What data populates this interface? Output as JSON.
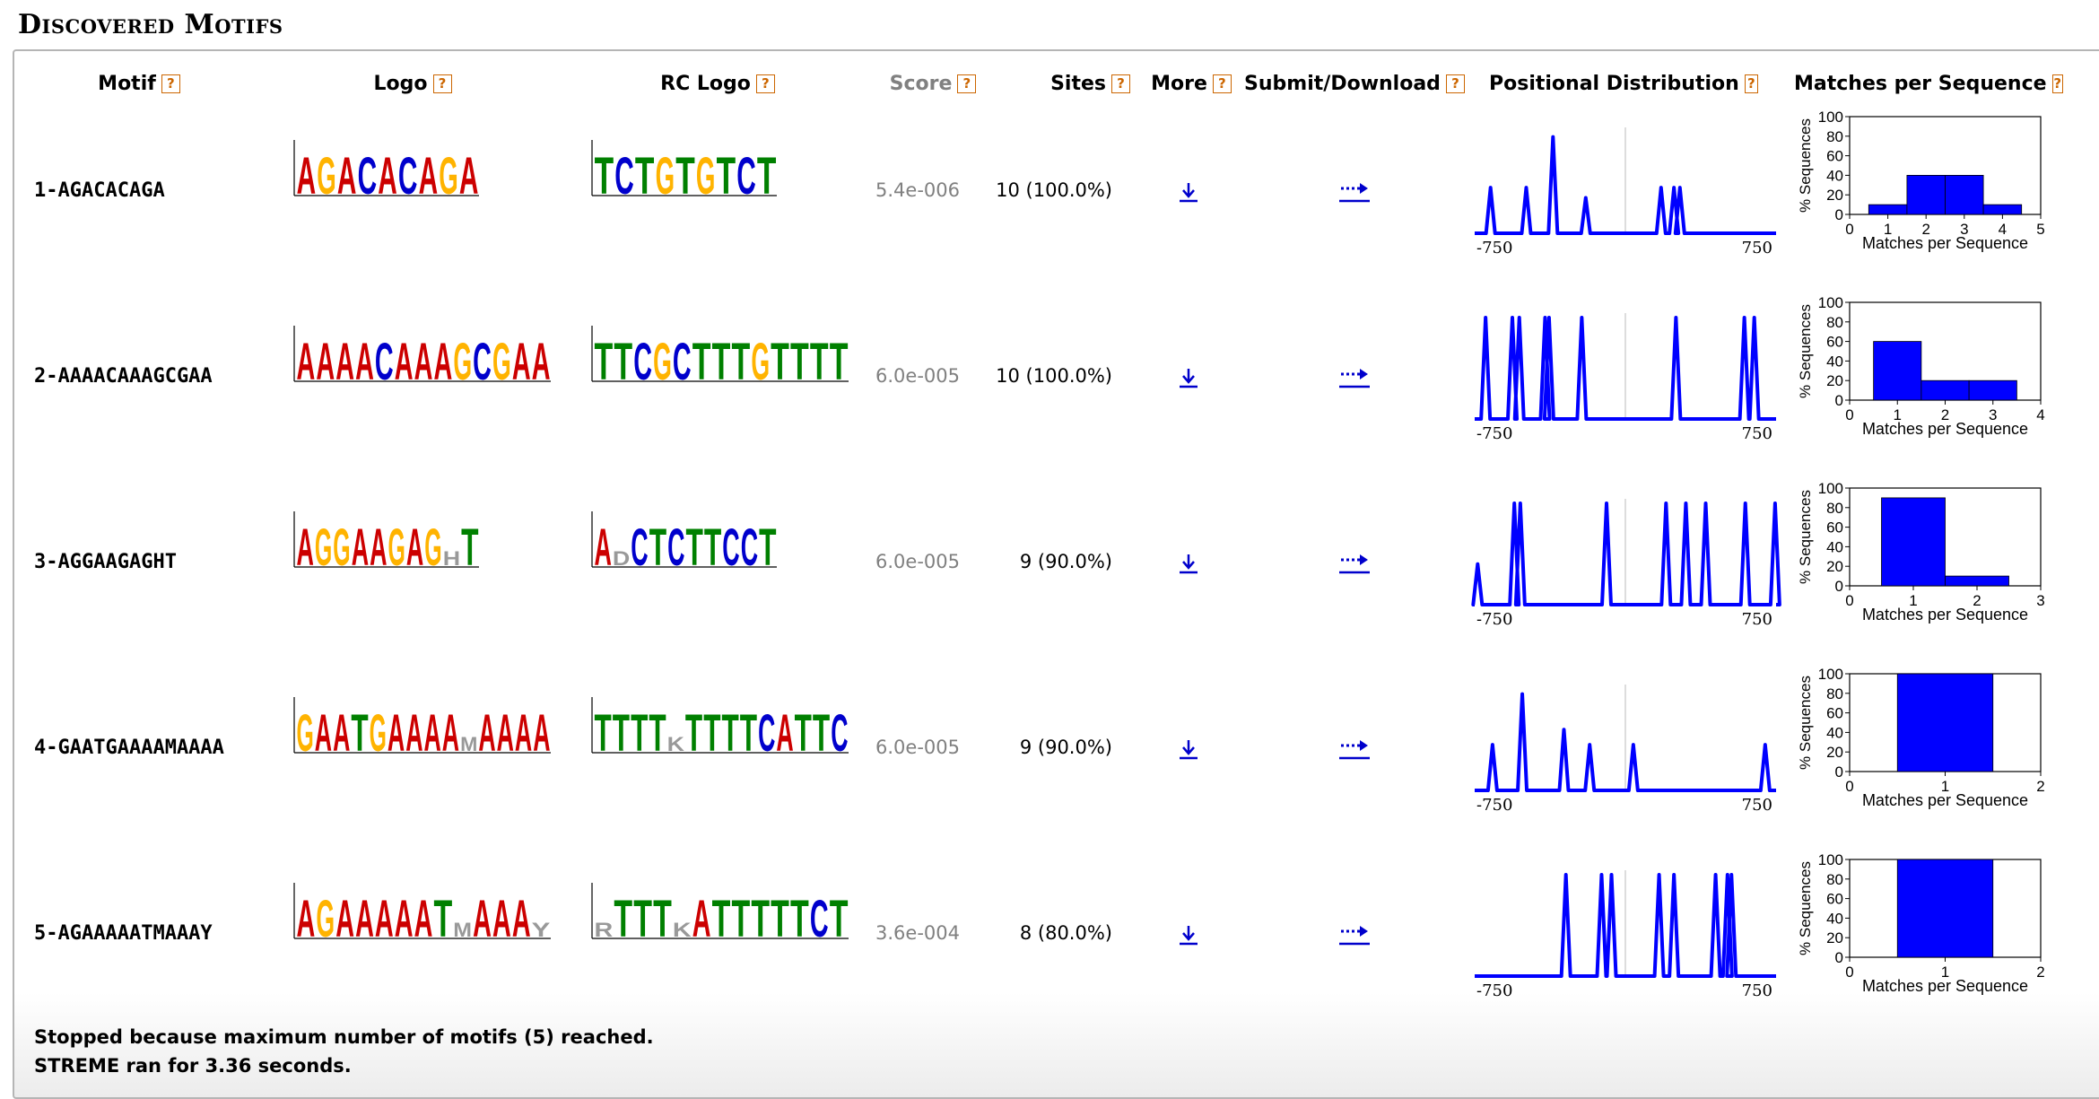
{
  "section_title": "Discovered Motifs",
  "headers": {
    "motif": "Motif",
    "logo": "Logo",
    "rc_logo": "RC Logo",
    "score": "Score",
    "sites": "Sites",
    "more": "More",
    "submit_download": "Submit/Download",
    "positional_distribution": "Positional Distribution",
    "matches_per_sequence": "Matches per Sequence"
  },
  "help_glyph": "?",
  "pd_axis": {
    "min": "-750",
    "max": "750"
  },
  "mps_axis": {
    "y_label": "% Sequences",
    "x_label": "Matches per Sequence",
    "y_ticks": [
      "0",
      "20",
      "40",
      "60",
      "80",
      "100"
    ]
  },
  "colors": {
    "A": "#cc0000",
    "C": "#0000cc",
    "G": "#ffb300",
    "T": "#008000",
    "plot_blue": "#0000ff",
    "link_blue": "#0000cc",
    "help_orange": "#cc6600",
    "score_grey": "#808080"
  },
  "icons": {
    "more": "download-arrow-icon",
    "submit": "dotted-arrow-right-icon",
    "help": "help-question-icon"
  },
  "motifs": [
    {
      "id": "1-AGACACAGA",
      "score": "5.4e-006",
      "sites": "10 (100.0%)",
      "logo": "AGACACAGA",
      "rc_logo": "TCTGTGTCT",
      "peaks": [
        -680,
        -500,
        -365,
        -200,
        180,
        245,
        275
      ],
      "peak_heights": [
        0.45,
        0.45,
        0.95,
        0.35,
        0.45,
        0.45,
        0.45
      ],
      "mps_xmax": 5,
      "mps_bars": [
        {
          "x": 1,
          "pct": 10
        },
        {
          "x": 2,
          "pct": 40
        },
        {
          "x": 3,
          "pct": 40
        },
        {
          "x": 4,
          "pct": 10
        }
      ]
    },
    {
      "id": "2-AAAACAAAGCGAA",
      "score": "6.0e-005",
      "sites": "10 (100.0%)",
      "logo": "AAAACAAAGCGAA",
      "rc_logo": "TTCGCTTTGTTTT",
      "peaks": [
        -705,
        -570,
        -535,
        -405,
        -385,
        -220,
        255,
        600,
        650
      ],
      "peak_heights": [
        1,
        1,
        1,
        1,
        1,
        1,
        1,
        1,
        1
      ],
      "mps_xmax": 4,
      "mps_bars": [
        {
          "x": 1,
          "pct": 60
        },
        {
          "x": 2,
          "pct": 20
        },
        {
          "x": 3,
          "pct": 20
        }
      ]
    },
    {
      "id": "3-AGGAAGAGHT",
      "score": "6.0e-005",
      "sites": "9 (90.0%)",
      "logo": "AGGAAGAGHT",
      "rc_logo": "ADCTCTTCCT",
      "peaks": [
        -745,
        -560,
        -530,
        -95,
        205,
        305,
        405,
        605,
        755
      ],
      "peak_heights": [
        0.4,
        1,
        1,
        1,
        1,
        1,
        1,
        1,
        1
      ],
      "mps_xmax": 3,
      "mps_bars": [
        {
          "x": 1,
          "pct": 90
        },
        {
          "x": 2,
          "pct": 10
        }
      ]
    },
    {
      "id": "4-GAATGAAAAMAAAA",
      "score": "6.0e-005",
      "sites": "9 (90.0%)",
      "logo": "GAATGAAAAMAAAA",
      "rc_logo": "TTTTKTTTTCATTC",
      "peaks": [
        -670,
        -520,
        -310,
        -180,
        40,
        705
      ],
      "peak_heights": [
        0.45,
        0.95,
        0.6,
        0.45,
        0.45,
        0.45
      ],
      "mps_xmax": 2,
      "mps_bars": [
        {
          "x": 1,
          "pct": 100
        }
      ]
    },
    {
      "id": "5-AGAAAAATMAAAY",
      "score": "3.6e-004",
      "sites": "8 (80.0%)",
      "logo": "AGAAAAATMAAAY",
      "rc_logo": "RTTTKATTTTTCT",
      "peaks": [
        -300,
        -120,
        -70,
        170,
        245,
        455,
        515,
        535
      ],
      "peak_heights": [
        1,
        1,
        1,
        1,
        1,
        1,
        1,
        1
      ],
      "mps_xmax": 2,
      "mps_bars": [
        {
          "x": 1,
          "pct": 100
        }
      ]
    }
  ],
  "footer": [
    "Stopped because maximum number of motifs (5) reached.",
    "STREME ran for 3.36 seconds."
  ]
}
